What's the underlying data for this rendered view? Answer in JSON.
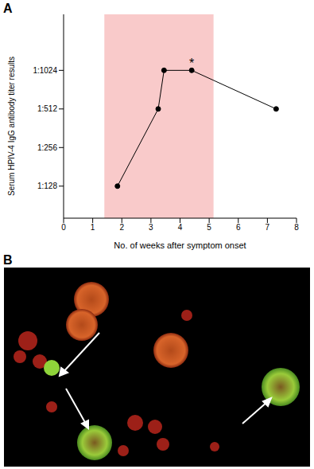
{
  "chart_data": {
    "type": "line",
    "panel_label": "A",
    "x_label": "No. of weeks after symptom onset",
    "y_label": "Serum HPIV-4 IgG antibody titer results",
    "x": [
      1.85,
      3.25,
      3.45,
      4.4,
      7.3
    ],
    "values": [
      128,
      512,
      1024,
      1024,
      512
    ],
    "color": "#000000",
    "marker": "circle",
    "log": "y",
    "xlim": [
      0,
      8
    ],
    "xticks": [
      0,
      1,
      2,
      3,
      4,
      5,
      6,
      7,
      8
    ],
    "ylim": [
      72,
      2800
    ],
    "yticks": [
      {
        "value": 128,
        "label": "1:128"
      },
      {
        "value": 256,
        "label": "1:256"
      },
      {
        "value": 512,
        "label": "1:512"
      },
      {
        "value": 1024,
        "label": "1:1024"
      }
    ],
    "shaded_region": {
      "x": [
        1.4,
        5.15
      ],
      "color": "#f9caca"
    },
    "annotations": [
      {
        "x": 4.4,
        "y": 1024,
        "text": "*"
      }
    ]
  },
  "panel_b": {
    "label": "B"
  }
}
